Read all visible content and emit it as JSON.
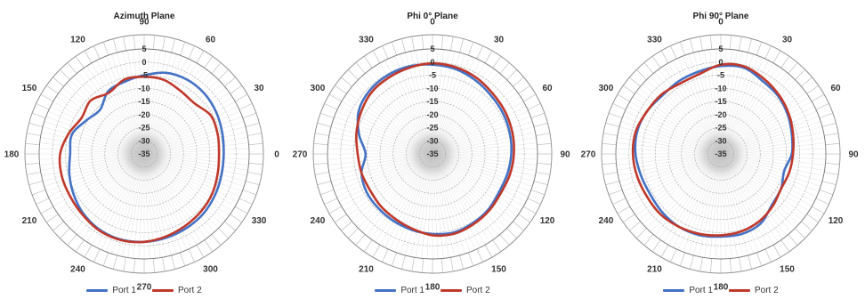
{
  "chart_data": [
    {
      "type": "polar-line",
      "title": "Azimuth Plane",
      "angle_labels": [
        "0",
        "30",
        "60",
        "90",
        "120",
        "150",
        "180",
        "210",
        "240",
        "270",
        "300",
        "330"
      ],
      "angle_layout": "counterclockwise-from-right",
      "radial_ticks": [
        "5",
        "0",
        "-5",
        "-10",
        "-15",
        "-20",
        "-25",
        "-30",
        "-35"
      ],
      "rlim": [
        -35,
        5
      ],
      "grid": true,
      "legend": "bottom-center",
      "series": [
        {
          "name": "Port 1",
          "color": "#4472C4",
          "theta": [
            0,
            15,
            30,
            45,
            60,
            75,
            90,
            105,
            120,
            135,
            150,
            165,
            180,
            195,
            210,
            225,
            240,
            255,
            270,
            285,
            300,
            315,
            330,
            345
          ],
          "values": [
            -4.7,
            -4.2,
            -3.3,
            -2.5,
            -2.3,
            -3.0,
            -5.0,
            -6.5,
            -7.5,
            -11.2,
            -9.5,
            -6.5,
            -6.8,
            -5.5,
            -4.0,
            -2.5,
            -1.5,
            -1.2,
            -1.5,
            -2.0,
            -2.5,
            -3.0,
            -3.8,
            -4.5
          ]
        },
        {
          "name": "Port 2",
          "color": "#C0392B",
          "theta": [
            0,
            15,
            30,
            45,
            60,
            75,
            90,
            105,
            120,
            135,
            150,
            165,
            180,
            195,
            210,
            225,
            240,
            255,
            270,
            285,
            300,
            315,
            330,
            345
          ],
          "values": [
            -6.5,
            -6.0,
            -5.7,
            -7.8,
            -7.3,
            -5.8,
            -5.6,
            -5.7,
            -8.1,
            -6.2,
            -7.5,
            -5.2,
            -3.0,
            -2.5,
            -2.5,
            -2.0,
            -1.2,
            -1.0,
            -1.5,
            -2.5,
            -3.5,
            -4.2,
            -5.0,
            -6.0
          ]
        }
      ]
    },
    {
      "type": "polar-line",
      "title": "Phi 0° Plane",
      "angle_labels": [
        "0",
        "30",
        "60",
        "90",
        "120",
        "150",
        "180",
        "210",
        "240",
        "270",
        "300",
        "330"
      ],
      "angle_layout": "clockwise-from-top",
      "radial_ticks": [
        "5",
        "0",
        "-5",
        "-10",
        "-15",
        "-20",
        "-25",
        "-30",
        "-35"
      ],
      "rlim": [
        -35,
        5
      ],
      "grid": true,
      "legend": "bottom-center",
      "series": [
        {
          "name": "Port 1",
          "color": "#4472C4",
          "theta": [
            0,
            15,
            30,
            45,
            60,
            75,
            90,
            105,
            120,
            135,
            150,
            165,
            180,
            195,
            210,
            225,
            240,
            255,
            270,
            285,
            300,
            315,
            330,
            345
          ],
          "values": [
            -1.0,
            -1.5,
            -2.5,
            -3.5,
            -4.0,
            -4.5,
            -5.0,
            -5.5,
            -5.8,
            -5.0,
            -4.5,
            -4.0,
            -4.5,
            -5.0,
            -5.5,
            -5.8,
            -6.0,
            -7.0,
            -9.5,
            -6.0,
            -2.5,
            -1.0,
            -0.5,
            -0.5
          ]
        },
        {
          "name": "Port 2",
          "color": "#C0392B",
          "theta": [
            0,
            15,
            30,
            45,
            60,
            75,
            90,
            105,
            120,
            135,
            150,
            165,
            180,
            195,
            210,
            225,
            240,
            255,
            270,
            285,
            300,
            315,
            330,
            345
          ],
          "values": [
            -0.5,
            -0.8,
            -1.5,
            -2.5,
            -3.0,
            -3.5,
            -4.0,
            -4.5,
            -5.0,
            -4.5,
            -4.0,
            -3.5,
            -4.0,
            -5.5,
            -6.5,
            -7.0,
            -7.5,
            -7.0,
            -6.5,
            -5.0,
            -3.5,
            -2.0,
            -1.5,
            -1.0
          ]
        }
      ]
    },
    {
      "type": "polar-line",
      "title": "Phi 90° Plane",
      "angle_labels": [
        "0",
        "30",
        "60",
        "90",
        "120",
        "150",
        "180",
        "210",
        "240",
        "270",
        "300",
        "330"
      ],
      "angle_layout": "clockwise-from-top",
      "radial_ticks": [
        "5",
        "0",
        "-5",
        "-10",
        "-15",
        "-20",
        "-25",
        "-30",
        "-35"
      ],
      "rlim": [
        -35,
        5
      ],
      "grid": true,
      "legend": "bottom-center",
      "series": [
        {
          "name": "Port 1",
          "color": "#4472C4",
          "theta": [
            0,
            15,
            30,
            45,
            60,
            75,
            90,
            105,
            120,
            135,
            150,
            165,
            180,
            195,
            210,
            225,
            240,
            255,
            270,
            285,
            300,
            315,
            330,
            345
          ],
          "values": [
            -1.5,
            -1.0,
            -3.0,
            -4.0,
            -5.5,
            -7.0,
            -8.0,
            -10.0,
            -8.5,
            -7.5,
            -4.5,
            -3.5,
            -3.5,
            -3.0,
            -3.0,
            -3.5,
            -4.0,
            -3.5,
            -2.5,
            -2.0,
            -2.5,
            -3.5,
            -3.0,
            -2.5
          ]
        },
        {
          "name": "Port 2",
          "color": "#C0392B",
          "theta": [
            0,
            15,
            30,
            45,
            60,
            75,
            90,
            105,
            120,
            135,
            150,
            165,
            180,
            195,
            210,
            225,
            240,
            255,
            270,
            285,
            300,
            315,
            330,
            345
          ],
          "values": [
            -1.0,
            -0.5,
            -2.0,
            -3.5,
            -5.0,
            -6.5,
            -7.5,
            -8.0,
            -8.5,
            -7.0,
            -5.5,
            -4.5,
            -4.0,
            -3.5,
            -3.0,
            -2.5,
            -2.5,
            -2.0,
            -1.5,
            -1.5,
            -2.5,
            -3.0,
            -4.0,
            -3.5
          ]
        }
      ]
    }
  ]
}
